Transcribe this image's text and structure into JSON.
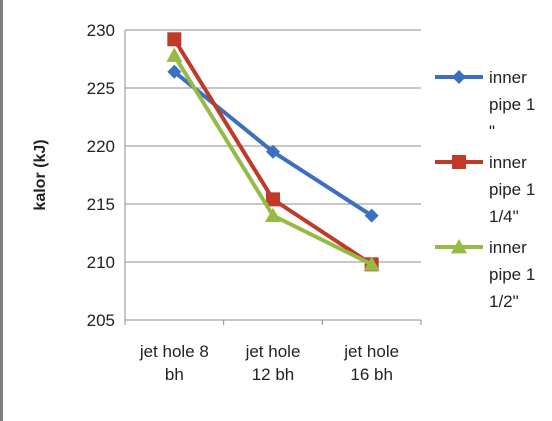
{
  "chart_data": {
    "type": "line",
    "categories": [
      [
        "jet hole  8",
        "bh"
      ],
      [
        "jet hole",
        "12 bh"
      ],
      [
        "jet hole",
        "16 bh"
      ]
    ],
    "ylabel": "kalor (kJ)",
    "xlabel": "",
    "ylim": [
      205,
      230
    ],
    "yticks": [
      205,
      210,
      215,
      220,
      225,
      230
    ],
    "grid": true,
    "legend_position": "right",
    "series": [
      {
        "name": [
          "inner",
          "pipe 1",
          "\""
        ],
        "values": [
          226.4,
          219.5,
          214.0
        ],
        "color": "#3c6fc0",
        "marker": "diamond"
      },
      {
        "name": [
          "inner",
          "pipe 1",
          "1/4\""
        ],
        "values": [
          229.2,
          215.4,
          209.8
        ],
        "color": "#c0392b",
        "marker": "square"
      },
      {
        "name": [
          "inner",
          "pipe 1",
          "1/2\""
        ],
        "values": [
          227.8,
          214.0,
          209.8
        ],
        "color": "#96bb45",
        "marker": "triangle"
      }
    ]
  }
}
